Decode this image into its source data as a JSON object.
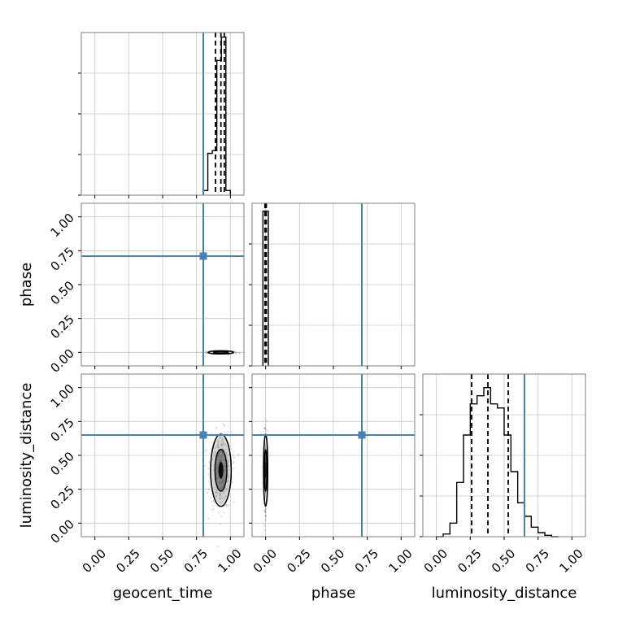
{
  "chart_data": {
    "type": "corner",
    "parameters": [
      "geocent_time",
      "phase",
      "luminosity_distance"
    ],
    "axis_range": [
      -0.1,
      1.1
    ],
    "tick_values": [
      0.0,
      0.25,
      0.5,
      0.75,
      1.0
    ],
    "tick_labels": [
      "0.00",
      "0.25",
      "0.50",
      "0.75",
      "1.00"
    ],
    "x_labels": [
      "geocent_time",
      "phase",
      "luminosity_distance"
    ],
    "y_labels": [
      "",
      "phase",
      "luminosity_distance"
    ],
    "grid": true,
    "truth_color": "#4682b4",
    "truths": {
      "geocent_time": 0.8,
      "phase": 0.71,
      "luminosity_distance": 0.65
    },
    "histograms": [
      {
        "parameter": "geocent_time",
        "bins": [
          0.8,
          0.8333,
          0.8667,
          0.9,
          0.9333,
          0.9667,
          1.0
        ],
        "counts": [
          0.05,
          0.45,
          0.48,
          1.45,
          1.7,
          0.05
        ],
        "ylim": [
          0,
          1.75
        ],
        "quantiles": [
          0.89,
          0.93,
          0.955
        ]
      },
      {
        "parameter": "phase",
        "bins": [
          -0.02,
          0.02
        ],
        "counts": [
          1.0
        ],
        "ylim": [
          0,
          1.05
        ],
        "quantiles": [
          -0.005,
          0.0,
          0.005
        ]
      },
      {
        "parameter": "luminosity_distance",
        "bins": [
          0.0,
          0.05,
          0.1,
          0.15,
          0.2,
          0.25,
          0.3,
          0.35,
          0.4,
          0.45,
          0.5,
          0.55,
          0.6,
          0.65,
          0.7,
          0.75,
          0.8,
          0.85,
          0.9
        ],
        "counts": [
          0.0,
          0.02,
          0.1,
          0.4,
          0.75,
          0.98,
          1.04,
          1.1,
          0.98,
          0.95,
          0.75,
          0.48,
          0.25,
          0.15,
          0.07,
          0.03,
          0.01,
          0.0
        ],
        "ylim": [
          0,
          1.2
        ],
        "quantiles": [
          0.26,
          0.38,
          0.53
        ]
      }
    ],
    "samples_2d": [
      {
        "x": "geocent_time",
        "y": "phase",
        "center": [
          0.93,
          0.0
        ],
        "spread": [
          0.05,
          0.0
        ]
      },
      {
        "x": "geocent_time",
        "y": "luminosity_distance",
        "center": [
          0.93,
          0.39
        ],
        "spread": [
          0.04,
          0.14
        ]
      },
      {
        "x": "phase",
        "y": "luminosity_distance",
        "center": [
          0.0,
          0.39
        ],
        "spread": [
          0.0,
          0.14
        ]
      }
    ]
  }
}
